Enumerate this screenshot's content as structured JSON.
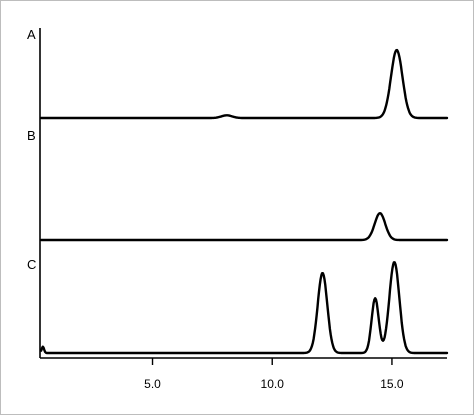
{
  "chart_data": {
    "type": "line",
    "title": "",
    "xlabel": "",
    "ylabel": "",
    "xlim": [
      0.3,
      17.3
    ],
    "x_ticks": [
      5.0,
      10.0,
      15.0
    ],
    "x_tick_labels": [
      "5.0",
      "10.0",
      "15.0"
    ],
    "grid": false,
    "series": [
      {
        "name": "A",
        "peaks": [
          {
            "x": 15.2,
            "height": 1.0,
            "width": 0.24
          },
          {
            "x": 8.1,
            "height": 0.04,
            "width": 0.22
          }
        ]
      },
      {
        "name": "B",
        "peaks": [
          {
            "x": 14.5,
            "height": 0.4,
            "width": 0.22
          }
        ]
      },
      {
        "name": "C",
        "peaks": [
          {
            "x": 12.1,
            "height": 0.88,
            "width": 0.2
          },
          {
            "x": 14.3,
            "height": 0.6,
            "width": 0.15
          },
          {
            "x": 15.1,
            "height": 1.0,
            "width": 0.21
          },
          {
            "x": 0.42,
            "height": 0.07,
            "width": 0.05
          }
        ]
      }
    ]
  }
}
